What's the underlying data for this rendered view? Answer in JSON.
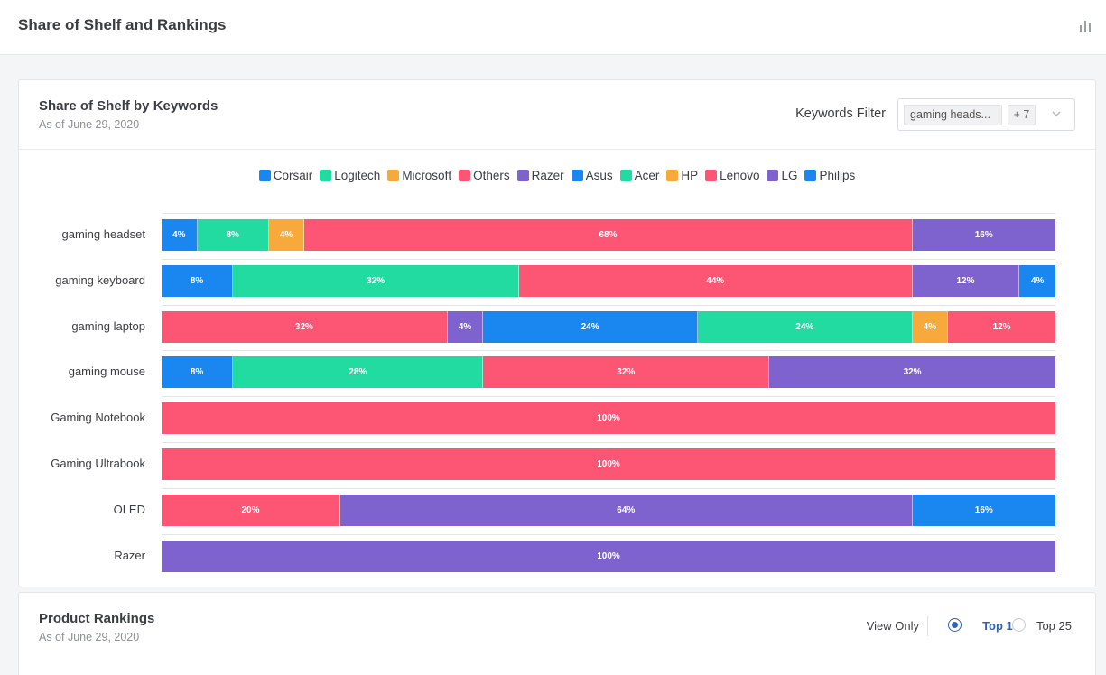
{
  "page": {
    "title": "Share of Shelf and Rankings"
  },
  "shelf": {
    "title": "Share of Shelf by Keywords",
    "subtitle": "As of June 29, 2020",
    "filter": {
      "label": "Keywords Filter",
      "tag": "gaming heads...",
      "more": "+ 7"
    }
  },
  "colors": {
    "Corsair": "#1a87f0",
    "Logitech": "#22dba0",
    "Microsoft": "#f7a93b",
    "Others": "#fd5574",
    "Razer": "#7e63cf",
    "Asus": "#1a87f0",
    "Acer": "#22dba0",
    "HP": "#f7a93b",
    "Lenovo": "#fd5574",
    "LG": "#7e63cf",
    "Philips": "#1a87f0"
  },
  "chart_data": {
    "type": "bar",
    "orientation": "horizontal",
    "stacked": true,
    "categories": [
      "gaming headset",
      "gaming keyboard",
      "gaming laptop",
      "gaming mouse",
      "Gaming Notebook",
      "Gaming Ultrabook",
      "OLED",
      "Razer"
    ],
    "legend": [
      "Corsair",
      "Logitech",
      "Microsoft",
      "Others",
      "Razer",
      "Asus",
      "Acer",
      "HP",
      "Lenovo",
      "LG",
      "Philips"
    ],
    "rows": [
      {
        "category": "gaming headset",
        "segments": [
          {
            "brand": "Corsair",
            "value": 4,
            "label": "4%"
          },
          {
            "brand": "Logitech",
            "value": 8,
            "label": "8%"
          },
          {
            "brand": "Microsoft",
            "value": 4,
            "label": "4%"
          },
          {
            "brand": "Others",
            "value": 68,
            "label": "68%"
          },
          {
            "brand": "Razer",
            "value": 16,
            "label": "16%"
          }
        ]
      },
      {
        "category": "gaming keyboard",
        "segments": [
          {
            "brand": "Corsair",
            "value": 8,
            "label": "8%"
          },
          {
            "brand": "Logitech",
            "value": 32,
            "label": "32%"
          },
          {
            "brand": "Others",
            "value": 44,
            "label": "44%"
          },
          {
            "brand": "Razer",
            "value": 12,
            "label": "12%"
          },
          {
            "brand": "Asus",
            "value": 4,
            "label": "4%"
          }
        ]
      },
      {
        "category": "gaming laptop",
        "segments": [
          {
            "brand": "Others",
            "value": 32,
            "label": "32%"
          },
          {
            "brand": "Razer",
            "value": 4,
            "label": "4%"
          },
          {
            "brand": "Asus",
            "value": 24,
            "label": "24%"
          },
          {
            "brand": "Acer",
            "value": 24,
            "label": "24%"
          },
          {
            "brand": "HP",
            "value": 4,
            "label": "4%"
          },
          {
            "brand": "Lenovo",
            "value": 12,
            "label": "12%"
          }
        ]
      },
      {
        "category": "gaming mouse",
        "segments": [
          {
            "brand": "Corsair",
            "value": 8,
            "label": "8%"
          },
          {
            "brand": "Logitech",
            "value": 28,
            "label": "28%"
          },
          {
            "brand": "Others",
            "value": 32,
            "label": "32%"
          },
          {
            "brand": "Razer",
            "value": 32,
            "label": "32%"
          }
        ]
      },
      {
        "category": "Gaming Notebook",
        "segments": [
          {
            "brand": "Others",
            "value": 100,
            "label": "100%"
          }
        ]
      },
      {
        "category": "Gaming Ultrabook",
        "segments": [
          {
            "brand": "Others",
            "value": 100,
            "label": "100%"
          }
        ]
      },
      {
        "category": "OLED",
        "segments": [
          {
            "brand": "Others",
            "value": 20,
            "label": "20%"
          },
          {
            "brand": "LG",
            "value": 64,
            "label": "64%"
          },
          {
            "brand": "Philips",
            "value": 16,
            "label": "16%"
          }
        ]
      },
      {
        "category": "Razer",
        "segments": [
          {
            "brand": "Razer",
            "value": 100,
            "label": "100%"
          }
        ]
      }
    ]
  },
  "rankings": {
    "title": "Product Rankings",
    "subtitle": "As of June 29, 2020",
    "view_only": "View Only",
    "options": [
      {
        "label": "Top 10",
        "selected": true
      },
      {
        "label": "Top 25",
        "selected": false
      }
    ]
  }
}
